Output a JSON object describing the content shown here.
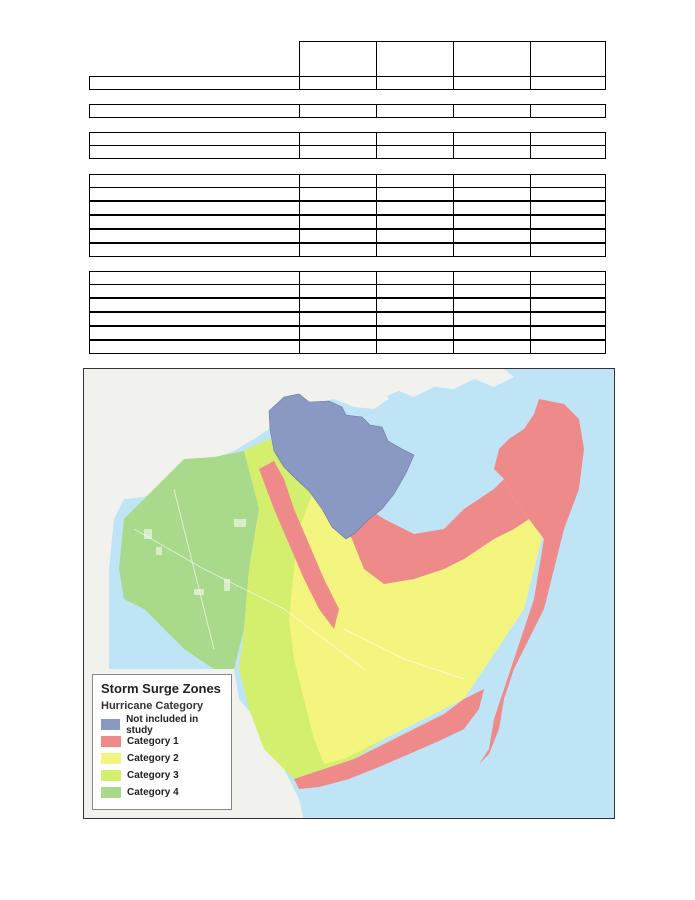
{
  "map": {
    "legend_title": "Storm Surge Zones",
    "legend_subtitle": "Hurricane Category",
    "legend_items": [
      {
        "label": "Not included in study",
        "color": "#8a99c4"
      },
      {
        "label": "Category 1",
        "color": "#ef8a8a"
      },
      {
        "label": "Category 2",
        "color": "#f3f57e"
      },
      {
        "label": "Category 3",
        "color": "#d4ef6e"
      },
      {
        "label": "Category 4",
        "color": "#a9d98b"
      }
    ],
    "water_color": "#bfe4f6",
    "land_color": "#f1f1ee"
  }
}
